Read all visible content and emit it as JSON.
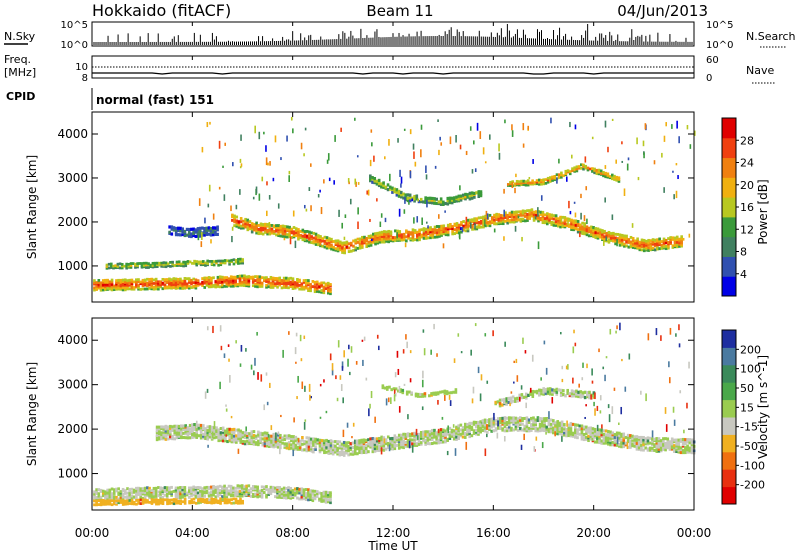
{
  "header": {
    "radar": "Hokkaido (fitACF)",
    "beam": "Beam 11",
    "date": "04/Jun/2013"
  },
  "panels": {
    "nsky": {
      "left_label": "N.Sky",
      "right_label": "N.Search",
      "top_tick": "10^5",
      "bottom_tick": "10^0",
      "r_top_tick": "10^5",
      "r_bottom_tick": "10^0"
    },
    "freq": {
      "left_label_1": "Freq.",
      "left_label_2": "[MHz]",
      "left_tick_top": "10",
      "left_tick_bottom": "8",
      "right_label": "Nave",
      "right_tick_top": "60",
      "right_tick_bottom": "0"
    },
    "cpid": {
      "label": "CPID",
      "value": "normal (fast) 151"
    }
  },
  "axes": {
    "ylabel": "Slant Range [km]",
    "xlabel": "Time UT",
    "yticks": [
      "1000",
      "2000",
      "3000",
      "4000"
    ],
    "xticks": [
      "00:00",
      "04:00",
      "08:00",
      "12:00",
      "16:00",
      "20:00",
      "00:00"
    ]
  },
  "colorbars": {
    "power": {
      "label": "Power [dB]",
      "ticks": [
        "4",
        "8",
        "12",
        "16",
        "20",
        "24",
        "28"
      ],
      "colors": [
        "#0000e6",
        "#3050b0",
        "#408060",
        "#3a9a3a",
        "#b8c820",
        "#f0b010",
        "#f08010",
        "#f04010",
        "#e00000"
      ]
    },
    "velocity": {
      "label": "Velocity [m s^-1]",
      "ticks": [
        "200",
        "100",
        "50",
        "15",
        "-15",
        "-50",
        "-100",
        "-200"
      ],
      "colors": [
        "#1e2ea0",
        "#4a7aa0",
        "#3a8a5a",
        "#4aa84a",
        "#9acc50",
        "#c8c8c0",
        "#f0b020",
        "#f07010",
        "#e83010",
        "#e00000"
      ]
    }
  },
  "chart_data": [
    {
      "type": "heatmap",
      "name": "power",
      "xlabel": "Time UT",
      "ylabel": "Slant Range [km]",
      "xlim": [
        0,
        24
      ],
      "ylim": [
        180,
        4500
      ],
      "colorbar": "Power [dB]",
      "color_range": [
        0,
        30
      ],
      "bands": [
        {
          "x": [
            0.0,
            2.0,
            4.0,
            6.0,
            8.0,
            9.5
          ],
          "y": [
            600,
            620,
            650,
            700,
            640,
            520
          ],
          "thick": 250,
          "value": 27
        },
        {
          "x": [
            0.5,
            2.0,
            4.0,
            5.0,
            6.0
          ],
          "y": [
            1030,
            1050,
            1100,
            1100,
            1150
          ],
          "thick": 120,
          "value": 16
        },
        {
          "x": [
            5.5,
            6.5,
            8.0,
            10.0,
            11.5,
            13.0,
            14.5,
            16.0,
            17.5,
            19.0,
            20.5,
            22.0,
            23.5
          ],
          "y": [
            2100,
            1900,
            1800,
            1450,
            1700,
            1750,
            1900,
            2100,
            2200,
            2000,
            1700,
            1500,
            1600
          ],
          "thick": 260,
          "value": 25
        },
        {
          "x": [
            3.0,
            4.0,
            5.0
          ],
          "y": [
            1850,
            1800,
            1850
          ],
          "thick": 200,
          "value": 6
        },
        {
          "x": [
            16.5,
            18.0,
            19.5,
            21.0
          ],
          "y": [
            2900,
            2950,
            3300,
            3000
          ],
          "thick": 120,
          "value": 22
        },
        {
          "x": [
            11.0,
            12.5,
            14.0,
            15.5
          ],
          "y": [
            3050,
            2600,
            2500,
            2700
          ],
          "thick": 150,
          "value": 15
        }
      ]
    },
    {
      "type": "heatmap",
      "name": "velocity",
      "xlabel": "Time UT",
      "ylabel": "Slant Range [km]",
      "xlim": [
        0,
        24
      ],
      "ylim": [
        180,
        4500
      ],
      "colorbar": "Velocity [m s^-1]",
      "color_range": [
        -200,
        200
      ],
      "bands": [
        {
          "x": [
            0.0,
            2.0,
            4.0,
            6.0,
            8.0,
            9.5
          ],
          "y": [
            560,
            600,
            620,
            650,
            600,
            500
          ],
          "thick": 260,
          "value": 0
        },
        {
          "x": [
            0.0,
            2.0,
            4.0,
            6.0
          ],
          "y": [
            380,
            400,
            420,
            420
          ],
          "thick": 120,
          "value": -60
        },
        {
          "x": [
            2.5,
            4.0,
            5.5,
            7.0,
            8.5,
            10.0,
            12.0,
            14.0,
            16.0,
            18.0,
            20.0,
            22.0,
            24.0
          ],
          "y": [
            1950,
            2000,
            1900,
            1800,
            1700,
            1600,
            1750,
            1900,
            2150,
            2150,
            1900,
            1700,
            1650
          ],
          "thick": 320,
          "value": 0
        },
        {
          "x": [
            16.0,
            18.0,
            20.0
          ],
          "y": [
            2600,
            2900,
            2800
          ],
          "thick": 150,
          "value": 0
        },
        {
          "x": [
            11.5,
            13.0,
            14.5
          ],
          "y": [
            3000,
            2800,
            2900
          ],
          "thick": 90,
          "value": 30
        }
      ]
    }
  ]
}
